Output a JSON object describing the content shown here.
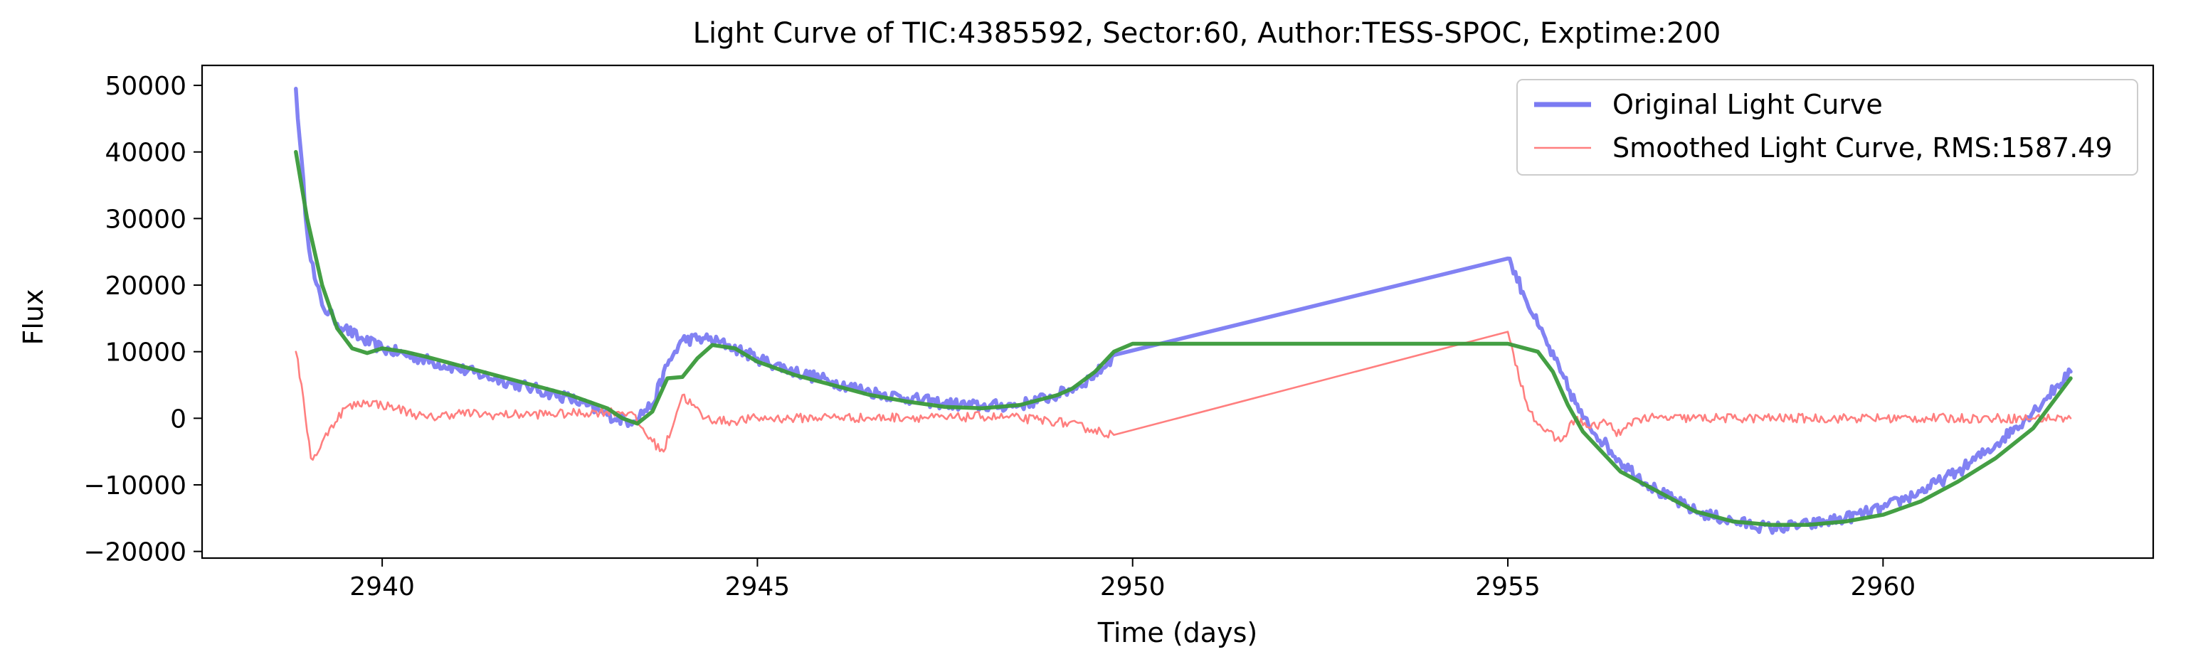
{
  "chart_data": {
    "type": "line",
    "title": "Light Curve of TIC:4385592, Sector:60, Author:TESS-SPOC, Exptime:200",
    "xlabel": "Time (days)",
    "ylabel": "Flux",
    "xlim": [
      2937.6,
      2963.6
    ],
    "ylim": [
      -21000,
      53000
    ],
    "xticks": [
      2940,
      2945,
      2950,
      2955,
      2960
    ],
    "yticks": [
      -20000,
      -10000,
      0,
      10000,
      20000,
      30000,
      40000,
      50000
    ],
    "grid": false,
    "legend_position": "top-right",
    "series": [
      {
        "name": "Original Light Curve",
        "color": "#7b7bf2",
        "noise": 900,
        "x": [
          2938.85,
          2938.9,
          2939.0,
          2939.1,
          2939.2,
          2939.35,
          2939.5,
          2939.7,
          2940.0,
          2940.5,
          2941.0,
          2941.5,
          2942.0,
          2942.5,
          2943.0,
          2943.3,
          2943.6,
          2943.8,
          2944.0,
          2944.3,
          2944.6,
          2945.0,
          2945.5,
          2946.0,
          2946.5,
          2947.0,
          2947.5,
          2948.0,
          2948.5,
          2949.0,
          2949.3,
          2949.6,
          2949.75,
          2955.0,
          2955.05,
          2955.2,
          2955.4,
          2955.7,
          2956.0,
          2956.5,
          2957.0,
          2957.5,
          2958.0,
          2958.5,
          2959.0,
          2959.5,
          2960.0,
          2960.5,
          2961.0,
          2961.5,
          2962.0,
          2962.5
        ],
        "y": [
          49500,
          42000,
          28000,
          21000,
          17000,
          15000,
          13500,
          12000,
          10500,
          9000,
          7500,
          6000,
          4500,
          3000,
          500,
          -500,
          2000,
          8000,
          11800,
          12000,
          11000,
          9000,
          7000,
          5500,
          4000,
          3000,
          2200,
          1800,
          2000,
          3500,
          5000,
          7500,
          9500,
          24000,
          23000,
          19000,
          14000,
          7000,
          0,
          -6500,
          -11000,
          -14000,
          -15500,
          -16500,
          -16000,
          -15000,
          -13500,
          -11000,
          -8000,
          -4000,
          1000,
          7000
        ]
      },
      {
        "name": "Smoothed Light Curve, RMS:1587.49",
        "color": "#ff7f7f",
        "noise": 700,
        "x": [
          2938.85,
          2938.95,
          2939.05,
          2939.15,
          2939.3,
          2939.5,
          2939.8,
          2940.2,
          2940.6,
          2941.0,
          2941.5,
          2942.0,
          2942.5,
          2943.0,
          2943.3,
          2943.6,
          2943.75,
          2944.0,
          2944.3,
          2944.6,
          2945.0,
          2945.5,
          2946.0,
          2946.5,
          2947.0,
          2947.5,
          2948.0,
          2948.5,
          2949.0,
          2949.4,
          2949.75,
          2955.0,
          2955.1,
          2955.3,
          2955.5,
          2955.7,
          2955.9,
          2956.1,
          2956.3,
          2956.5,
          2956.7,
          2957.0,
          2958.0,
          2959.0,
          2960.0,
          2961.0,
          2962.0,
          2962.5
        ],
        "y": [
          10000,
          3000,
          -6000,
          -5000,
          -1500,
          1500,
          2500,
          1500,
          0,
          800,
          500,
          600,
          700,
          1000,
          900,
          -3500,
          -5000,
          3500,
          0,
          -500,
          0,
          0,
          200,
          0,
          200,
          0,
          300,
          0,
          -500,
          -1500,
          -2500,
          13000,
          8000,
          1000,
          -2000,
          -3500,
          0,
          -1500,
          -500,
          -2500,
          0,
          0,
          0,
          0,
          0,
          0,
          0,
          0
        ]
      },
      {
        "color": "#3a9a3a",
        "noise": 0,
        "x": [
          2938.85,
          2939.0,
          2939.2,
          2939.4,
          2939.6,
          2939.8,
          2940.0,
          2940.3,
          2940.6,
          2941.0,
          2941.5,
          2942.0,
          2942.5,
          2943.0,
          2943.2,
          2943.4,
          2943.6,
          2943.8,
          2944.0,
          2944.2,
          2944.4,
          2944.7,
          2945.0,
          2945.5,
          2946.0,
          2946.5,
          2947.0,
          2947.5,
          2948.0,
          2948.5,
          2949.0,
          2949.2,
          2949.5,
          2949.75,
          2950.0,
          2955.0,
          2955.4,
          2955.6,
          2955.8,
          2956.0,
          2956.5,
          2957.0,
          2957.5,
          2958.0,
          2958.5,
          2959.0,
          2959.5,
          2960.0,
          2960.5,
          2961.0,
          2961.5,
          2962.0,
          2962.5
        ],
        "y": [
          40000,
          30000,
          20000,
          13500,
          10500,
          9800,
          10500,
          10000,
          9200,
          8000,
          6500,
          5000,
          3500,
          1500,
          0,
          -800,
          1000,
          6000,
          6200,
          9000,
          11000,
          10500,
          8500,
          6500,
          5000,
          3500,
          2500,
          1700,
          1500,
          2000,
          3500,
          4500,
          7000,
          10000,
          11200,
          11200,
          10000,
          7000,
          2000,
          -2000,
          -8000,
          -11000,
          -14000,
          -15500,
          -16000,
          -16000,
          -15500,
          -14500,
          -12500,
          -9500,
          -6000,
          -1500,
          6000
        ]
      }
    ]
  }
}
